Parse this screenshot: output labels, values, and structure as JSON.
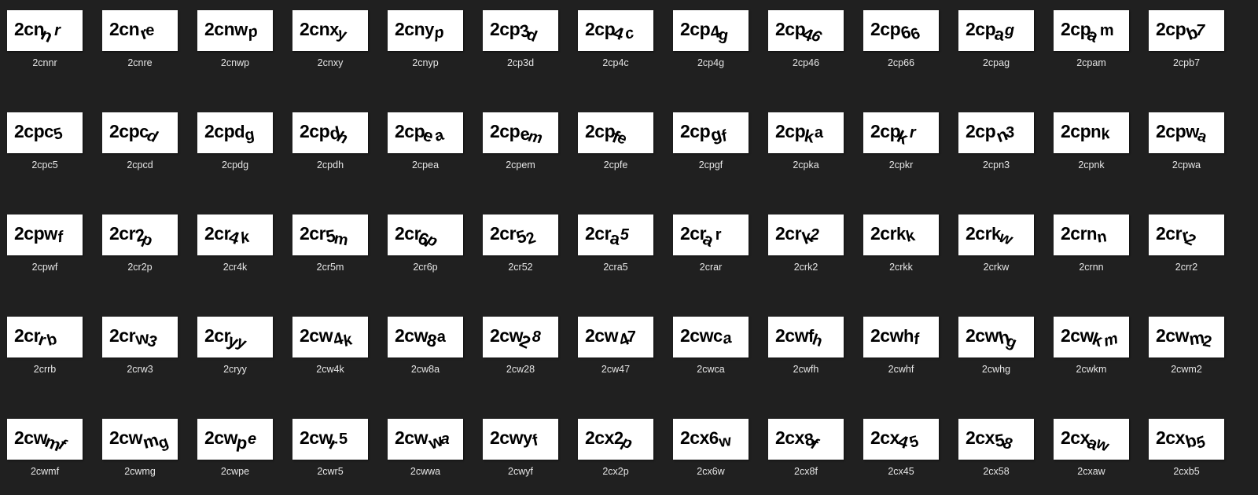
{
  "folder_view": {
    "items": [
      {
        "name": "2cnnr",
        "captcha_text": "2cnnr"
      },
      {
        "name": "2cnre",
        "captcha_text": "2cnre"
      },
      {
        "name": "2cnwp",
        "captcha_text": "2cnwp"
      },
      {
        "name": "2cnxy",
        "captcha_text": "2cnxy"
      },
      {
        "name": "2cnyp",
        "captcha_text": "2cnyp"
      },
      {
        "name": "2cp3d",
        "captcha_text": "2cp3d"
      },
      {
        "name": "2cp4c",
        "captcha_text": "2cp4c"
      },
      {
        "name": "2cp4g",
        "captcha_text": "2cp4g"
      },
      {
        "name": "2cp46",
        "captcha_text": "2cp46"
      },
      {
        "name": "2cp66",
        "captcha_text": "2cp66"
      },
      {
        "name": "2cpag",
        "captcha_text": "2cpag"
      },
      {
        "name": "2cpam",
        "captcha_text": "2cpam"
      },
      {
        "name": "2cpb7",
        "captcha_text": "2cpb7"
      },
      {
        "name": "2cpc5",
        "captcha_text": "2cpc5"
      },
      {
        "name": "2cpcd",
        "captcha_text": "2cpcd"
      },
      {
        "name": "2cpdg",
        "captcha_text": "2cpdg"
      },
      {
        "name": "2cpdh",
        "captcha_text": "2cpdh"
      },
      {
        "name": "2cpea",
        "captcha_text": "2cpea"
      },
      {
        "name": "2cpem",
        "captcha_text": "2cpem"
      },
      {
        "name": "2cpfe",
        "captcha_text": "2cpfe"
      },
      {
        "name": "2cpgf",
        "captcha_text": "2cpgf"
      },
      {
        "name": "2cpka",
        "captcha_text": "2cpka"
      },
      {
        "name": "2cpkr",
        "captcha_text": "2cpkr"
      },
      {
        "name": "2cpn3",
        "captcha_text": "2cpn3"
      },
      {
        "name": "2cpnk",
        "captcha_text": "2cpnk"
      },
      {
        "name": "2cpwa",
        "captcha_text": "2cpwa"
      },
      {
        "name": "2cpwf",
        "captcha_text": "2cpwf"
      },
      {
        "name": "2cr2p",
        "captcha_text": "2cr2p"
      },
      {
        "name": "2cr4k",
        "captcha_text": "2cr4k"
      },
      {
        "name": "2cr5m",
        "captcha_text": "2cr5m"
      },
      {
        "name": "2cr6p",
        "captcha_text": "2cr6p"
      },
      {
        "name": "2cr52",
        "captcha_text": "2cr52"
      },
      {
        "name": "2cra5",
        "captcha_text": "2cra5"
      },
      {
        "name": "2crar",
        "captcha_text": "2crar"
      },
      {
        "name": "2crk2",
        "captcha_text": "2crk2"
      },
      {
        "name": "2crkk",
        "captcha_text": "2crkk"
      },
      {
        "name": "2crkw",
        "captcha_text": "2crkw"
      },
      {
        "name": "2crnn",
        "captcha_text": "2crnn"
      },
      {
        "name": "2crr2",
        "captcha_text": "2crr2"
      },
      {
        "name": "2crrb",
        "captcha_text": "2crrb"
      },
      {
        "name": "2crw3",
        "captcha_text": "2crw3"
      },
      {
        "name": "2cryy",
        "captcha_text": "2cryy"
      },
      {
        "name": "2cw4k",
        "captcha_text": "2cw4k"
      },
      {
        "name": "2cw8a",
        "captcha_text": "2cw8a"
      },
      {
        "name": "2cw28",
        "captcha_text": "2cw28"
      },
      {
        "name": "2cw47",
        "captcha_text": "2cw47"
      },
      {
        "name": "2cwca",
        "captcha_text": "2cwca"
      },
      {
        "name": "2cwfh",
        "captcha_text": "2cwfh"
      },
      {
        "name": "2cwhf",
        "captcha_text": "2cwhf"
      },
      {
        "name": "2cwhg",
        "captcha_text": "2cwhg"
      },
      {
        "name": "2cwkm",
        "captcha_text": "2cwkm"
      },
      {
        "name": "2cwm2",
        "captcha_text": "2cwm2"
      },
      {
        "name": "2cwmf",
        "captcha_text": "2cwmf"
      },
      {
        "name": "2cwmg",
        "captcha_text": "2cwmg"
      },
      {
        "name": "2cwpe",
        "captcha_text": "2cwpe"
      },
      {
        "name": "2cwr5",
        "captcha_text": "2cwr5"
      },
      {
        "name": "2cwwa",
        "captcha_text": "2cwwa"
      },
      {
        "name": "2cwyf",
        "captcha_text": "2cwyf"
      },
      {
        "name": "2cx2p",
        "captcha_text": "2cx2p"
      },
      {
        "name": "2cx6w",
        "captcha_text": "2cx6w"
      },
      {
        "name": "2cx8f",
        "captcha_text": "2cx8f"
      },
      {
        "name": "2cx45",
        "captcha_text": "2cx45"
      },
      {
        "name": "2cx58",
        "captcha_text": "2cx58"
      },
      {
        "name": "2cxaw",
        "captcha_text": "2cxaw"
      },
      {
        "name": "2cxb5",
        "captcha_text": "2cxb5"
      }
    ]
  }
}
